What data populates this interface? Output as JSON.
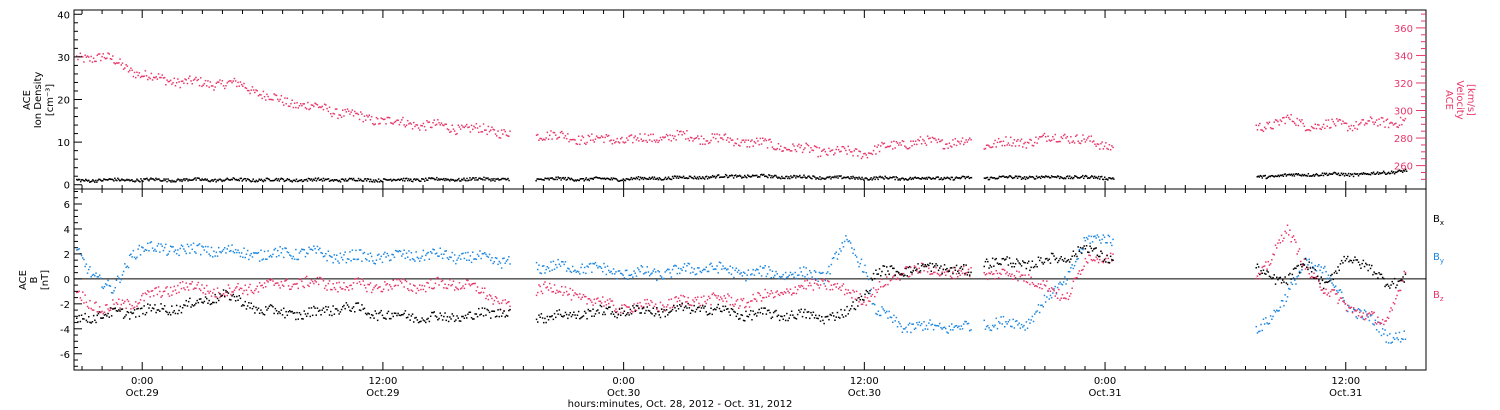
{
  "colors": {
    "black": "#000000",
    "pink": "#e8386a",
    "blue": "#1f88e0"
  },
  "x_axis": {
    "label": "hours:minutes, Oct. 28, 2012 - Oct. 31, 2012",
    "range_hours": [
      -3.4,
      64.0
    ],
    "major_ticks": [
      {
        "hour": 0,
        "line1": "0:00",
        "line2": "Oct.29"
      },
      {
        "hour": 12,
        "line1": "12:00",
        "line2": "Oct.29"
      },
      {
        "hour": 24,
        "line1": "0:00",
        "line2": "Oct.30"
      },
      {
        "hour": 36,
        "line1": "12:00",
        "line2": "Oct.30"
      },
      {
        "hour": 48,
        "line1": "0:00",
        "line2": "Oct.31"
      },
      {
        "hour": 60,
        "line1": "12:00",
        "line2": "Oct.31"
      }
    ]
  },
  "chart_data": [
    {
      "type": "scatter",
      "panel": "top",
      "ylabel_left": "ACE Ion Density [cm^-3]",
      "ylabel_lines": [
        "ACE",
        "Ion Density",
        "[cm⁻³]"
      ],
      "ylim_left": [
        -1,
        41
      ],
      "yticks_left": [
        0,
        10,
        20,
        30,
        40
      ],
      "ylabel_right_lines": [
        "ACE",
        "Velocity",
        "[km/s]"
      ],
      "ylim_right": [
        243,
        373
      ],
      "yticks_right": [
        260,
        280,
        300,
        320,
        340,
        360
      ],
      "data_gaps_hours": [
        [
          18.3,
          19.6
        ],
        [
          41.3,
          41.9
        ],
        [
          48.4,
          55.5
        ]
      ],
      "series": [
        {
          "name": "Ion Density",
          "axis": "left",
          "color": "black",
          "x": [
            -3.3,
            0,
            6,
            12,
            18,
            20,
            24,
            30,
            36,
            41,
            42,
            46,
            48,
            55.6,
            58,
            61,
            63
          ],
          "values": [
            1.2,
            1.3,
            1.3,
            1.3,
            1.5,
            1.5,
            1.5,
            2.2,
            1.7,
            1.7,
            1.8,
            2.0,
            1.8,
            2.0,
            2.6,
            2.6,
            3.5
          ]
        },
        {
          "name": "Velocity",
          "axis": "right",
          "color": "pink",
          "x": [
            -3.3,
            -2,
            0,
            2,
            4,
            5,
            6,
            7,
            9,
            11,
            14,
            18,
            20,
            22,
            24,
            27,
            30,
            33,
            35,
            36,
            38,
            41.3,
            42,
            44,
            46,
            48,
            55.6,
            57,
            58,
            60,
            62,
            63
          ],
          "values": [
            338,
            340,
            326,
            321,
            320,
            319,
            312,
            307,
            302,
            295,
            290,
            285,
            283,
            280,
            279,
            282,
            278,
            272,
            270,
            270,
            277,
            278,
            276,
            278,
            282,
            275,
            288,
            294,
            290,
            290,
            292,
            293
          ]
        }
      ]
    },
    {
      "type": "scatter",
      "panel": "bottom",
      "ylabel_lines": [
        "ACE",
        "B",
        "[nT]"
      ],
      "ylim": [
        -7.3,
        7.2
      ],
      "yticks": [
        -6,
        -4,
        -2,
        0,
        2,
        4,
        6
      ],
      "zero_line": true,
      "data_gaps_hours": [
        [
          18.3,
          19.6
        ],
        [
          41.3,
          41.9
        ],
        [
          48.4,
          55.5
        ]
      ],
      "series": [
        {
          "name": "Bx",
          "legend": "B",
          "legend_sub": "x",
          "color": "black",
          "x": [
            -3.3,
            0,
            2,
            4,
            6,
            8,
            10,
            12,
            14,
            16,
            18,
            20,
            22,
            24,
            26,
            28,
            30,
            32,
            34,
            35,
            36,
            36.5,
            38,
            40,
            41.3,
            42,
            44,
            46,
            47,
            48,
            55.6,
            57,
            58,
            59,
            60,
            61,
            62,
            63
          ],
          "values": [
            -3.1,
            -2.5,
            -2.2,
            -1.2,
            -2.5,
            -2.8,
            -2.2,
            -2.8,
            -3.0,
            -3.0,
            -2.5,
            -3.0,
            -2.7,
            -2.5,
            -2.5,
            -2.3,
            -2.8,
            -2.8,
            -3.0,
            -2.8,
            -1.2,
            0.5,
            0.8,
            1.0,
            0.5,
            1.5,
            1.2,
            1.8,
            2.5,
            1.8,
            0.8,
            -0.3,
            1.5,
            -0.7,
            2.0,
            1.0,
            -0.2,
            0.0
          ]
        },
        {
          "name": "By",
          "legend": "B",
          "legend_sub": "y",
          "color": "blue",
          "x": [
            -3.3,
            -2.5,
            -1.5,
            -0.5,
            0,
            4,
            6,
            8,
            10,
            12,
            14,
            16,
            18,
            20,
            22,
            24,
            26,
            28,
            30,
            32,
            34,
            35,
            36,
            36.5,
            38,
            41.3,
            42,
            44,
            46,
            47,
            48,
            55.6,
            57,
            58,
            59,
            60,
            61,
            62,
            63
          ],
          "values": [
            2.2,
            0.5,
            -1.0,
            2.2,
            2.5,
            2.3,
            2.0,
            2.2,
            1.8,
            1.8,
            2.0,
            1.8,
            1.5,
            1.0,
            1.0,
            0.5,
            0.5,
            1.0,
            0.5,
            0.5,
            0.3,
            3.0,
            1.0,
            -2.5,
            -3.8,
            -3.8,
            -3.5,
            -3.5,
            0.0,
            3.0,
            3.5,
            -4.0,
            -1.5,
            1.5,
            0.5,
            -2.0,
            -3.0,
            -4.5,
            -4.5
          ]
        },
        {
          "name": "Bz",
          "legend": "B",
          "legend_sub": "z",
          "color": "pink",
          "x": [
            -3.3,
            -2,
            0,
            2,
            4,
            6,
            8,
            10,
            12,
            14,
            16,
            18,
            20,
            22,
            24,
            26,
            28,
            30,
            32,
            34,
            35,
            36,
            38,
            41.3,
            42,
            44,
            46,
            47,
            48,
            55.6,
            57,
            58,
            59,
            60,
            61,
            62,
            63
          ],
          "values": [
            -1.0,
            -2.5,
            -1.5,
            -0.5,
            -1.0,
            -0.5,
            -0.2,
            -0.5,
            -0.5,
            -0.5,
            -0.3,
            -2.0,
            -0.5,
            -1.5,
            -2.3,
            -2.0,
            -1.5,
            -1.8,
            -1.0,
            -0.2,
            -1.0,
            -1.5,
            0.8,
            0.5,
            0.5,
            0.3,
            -1.5,
            1.5,
            2.0,
            0.0,
            4.0,
            1.0,
            -1.0,
            -2.0,
            -3.0,
            -3.5,
            1.0
          ]
        }
      ]
    }
  ]
}
